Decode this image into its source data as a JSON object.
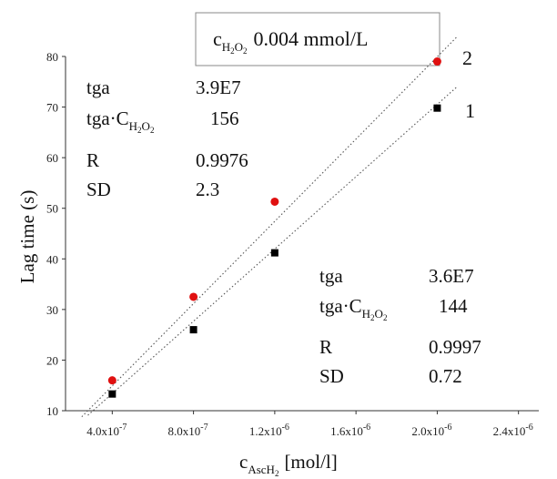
{
  "chart_data": {
    "type": "scatter",
    "title": {
      "prefix": "c",
      "subscript": "H",
      "sub_number": "2",
      "sub_letter": "O",
      "sub_number2": "2",
      "value": "0.004 mmol/L"
    },
    "xlabel": {
      "main": "c",
      "subscript": "AscH",
      "sub_number": "2",
      "unit": "[mol/l]"
    },
    "ylabel": "Lag time (s)",
    "x_tick_labels": [
      "4.0x10",
      "8.0x10",
      "1.2x10",
      "1.6x10",
      "2.0x10",
      "2.4x10"
    ],
    "x_tick_exponents": [
      "-7",
      "-7",
      "-6",
      "-6",
      "-6",
      "-6"
    ],
    "x_ticks": [
      4e-07,
      8e-07,
      1.2e-06,
      1.6e-06,
      2e-06,
      2.4e-06
    ],
    "xlim": [
      1.7e-07,
      2.5e-06
    ],
    "y_ticks": [
      10,
      20,
      30,
      40,
      50,
      60,
      70,
      80
    ],
    "ylim": [
      10,
      80
    ],
    "grid": false,
    "series": [
      {
        "name": "1",
        "color": "#000000",
        "marker": "square",
        "x": [
          4e-07,
          8e-07,
          1.2e-06,
          2e-06
        ],
        "y": [
          13.3,
          26.0,
          41.2,
          69.8
        ],
        "trend_line": {
          "x": [
            2.8e-07,
            2.1e-06
          ],
          "y": [
            9.1,
            74.1
          ]
        }
      },
      {
        "name": "2",
        "color": "#e01010",
        "marker": "circle",
        "x": [
          4e-07,
          8e-07,
          1.2e-06,
          2e-06
        ],
        "y": [
          16.0,
          32.5,
          51.3,
          79.0
        ],
        "trend_line": {
          "x": [
            2.5e-07,
            2.1e-06
          ],
          "y": [
            8.8,
            84.0
          ]
        }
      }
    ],
    "stats_series_2": {
      "tga_label": "tga",
      "tga_value": "3.9E7",
      "tgac_label": "tga·C",
      "tgac_sub1": "H",
      "tgac_n1": "2",
      "tgac_sub2": "O",
      "tgac_n2": "2",
      "tgac_value": "156",
      "r_label": "R",
      "r_value": "0.9976",
      "sd_label": "SD",
      "sd_value": "2.3"
    },
    "stats_series_1": {
      "tga_label": "tga",
      "tga_value": "3.6E7",
      "tgac_label": "tga·C",
      "tgac_sub1": "H",
      "tgac_n1": "2",
      "tgac_sub2": "O",
      "tgac_n2": "2",
      "tgac_value": "144",
      "r_label": "R",
      "r_value": "0.9997",
      "sd_label": "SD",
      "sd_value": "0.72"
    }
  }
}
